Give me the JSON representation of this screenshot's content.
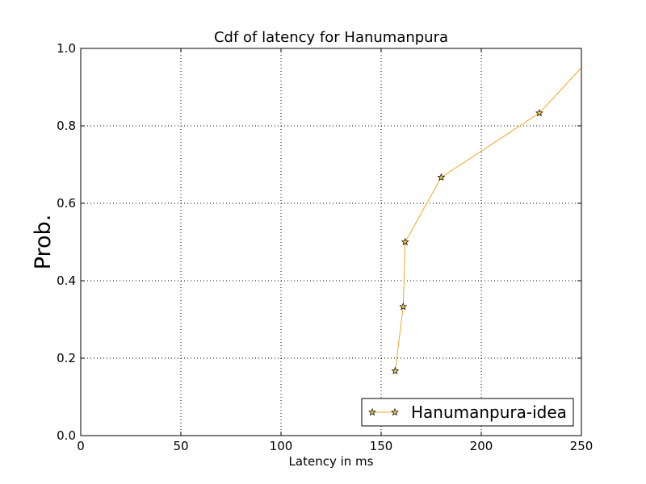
{
  "chart_data": {
    "type": "line",
    "title": "Cdf of latency for Hanumanpura",
    "xlabel": "Latency in ms",
    "ylabel": "Prob.",
    "xlim": [
      0,
      250
    ],
    "ylim": [
      0.0,
      1.0
    ],
    "xticks": [
      0,
      50,
      100,
      150,
      200,
      250
    ],
    "xtick_labels": [
      "0",
      "50",
      "100",
      "150",
      "200",
      "250"
    ],
    "yticks": [
      0.0,
      0.2,
      0.4,
      0.6,
      0.8,
      1.0
    ],
    "ytick_labels": [
      "0.0",
      "0.2",
      "0.4",
      "0.6",
      "0.8",
      "1.0"
    ],
    "grid": true,
    "legend_position": "lower-right",
    "series": [
      {
        "name": "Hanumanpura-idea",
        "color": "#f5a623",
        "marker": "star",
        "marker_color": "#f2c94c",
        "x": [
          157,
          161,
          162,
          180,
          229,
          250
        ],
        "y": [
          0.167,
          0.333,
          0.5,
          0.667,
          0.833,
          0.95
        ],
        "markers_shown": [
          true,
          true,
          true,
          true,
          true,
          false
        ]
      }
    ]
  }
}
